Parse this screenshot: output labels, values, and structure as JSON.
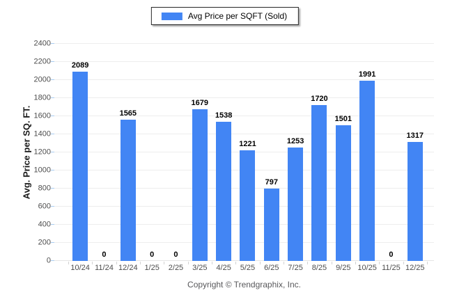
{
  "legend": {
    "label": "Avg Price per SQFT (Sold)",
    "swatch_color": "#4285F4"
  },
  "footer": {
    "copyright": "Copyright © Trendgraphix, Inc."
  },
  "colors": {
    "bar": "#4285F4",
    "gridline": "#ededed",
    "baseline": "#e4e4e4",
    "y_tick": "#a9cdf2",
    "x_tick": "#d2d2d2",
    "tick_label": "#4d4d4d",
    "value_label": "#000000",
    "copyright": "#58585b",
    "legend_border": "#262626"
  },
  "chart_data": {
    "type": "bar",
    "categories": [
      "10/24",
      "11/24",
      "12/24",
      "1/25",
      "2/25",
      "3/25",
      "4/25",
      "5/25",
      "6/25",
      "7/25",
      "8/25",
      "9/25",
      "10/25",
      "11/25",
      "12/25"
    ],
    "values": [
      2089,
      0,
      1565,
      0,
      0,
      1679,
      1538,
      1221,
      797,
      1253,
      1720,
      1501,
      1991,
      0,
      1317
    ],
    "title": "",
    "xlabel": "",
    "ylabel": "Avg. Price per SQ. FT.",
    "ylim": [
      0,
      2400
    ],
    "ytick_step": 200,
    "grid": true,
    "legend_entries": [
      "Avg Price per SQFT (Sold)"
    ],
    "legend_position": "top-center",
    "bar_labels": true
  }
}
